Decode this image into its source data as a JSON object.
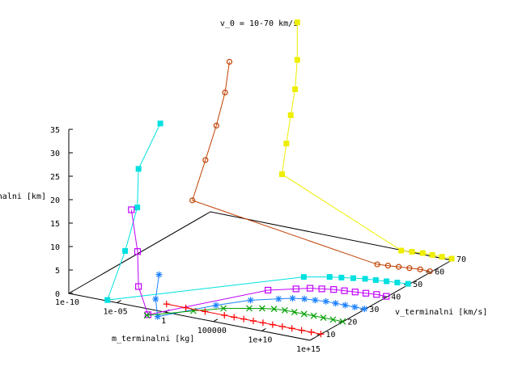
{
  "chart_data": {
    "type": "line",
    "title": "v_0 = 10-70 km/s",
    "xlabel": "m_terminalni [kg]",
    "ylabel": "v_terminalni [km/s]",
    "zlabel": "h_terminalni [km]",
    "x_scale": "log",
    "xlim": [
      1e-10,
      1000000000000000.0
    ],
    "ylim": [
      5,
      70
    ],
    "zlim": [
      0,
      35
    ],
    "x_ticks": [
      "1e-10",
      "1e-05",
      "1",
      "100000",
      "1e+10",
      "1e+15"
    ],
    "y_ticks": [
      "10",
      "20",
      "30",
      "40",
      "50",
      "60",
      "70"
    ],
    "z_ticks": [
      "0",
      "5",
      "10",
      "15",
      "20",
      "25",
      "30",
      "35"
    ],
    "grid": false,
    "legend": "none",
    "series": [
      {
        "v0": 10,
        "color": "#ff0000",
        "marker": "plus",
        "points": [
          [
            0.1,
            10,
            0
          ],
          [
            10.0,
            10,
            0
          ],
          [
            1000.0,
            10,
            0
          ],
          [
            100000.0,
            10,
            0
          ],
          [
            1000000.0,
            10,
            0
          ],
          [
            10000000.0,
            10,
            0
          ],
          [
            100000000.0,
            10,
            0
          ],
          [
            1000000000.0,
            10,
            0
          ],
          [
            10000000000.0,
            10,
            0
          ],
          [
            100000000000.0,
            10,
            0
          ],
          [
            1000000000000.0,
            10,
            0
          ],
          [
            10000000000000.0,
            10,
            0
          ],
          [
            100000000000000.0,
            10,
            0
          ],
          [
            1000000000000000.0,
            10,
            0
          ]
        ]
      },
      {
        "v0": 20,
        "color": "#00a000",
        "marker": "cross",
        "points": [
          [
            0.1,
            1,
            0
          ],
          [
            100.0,
            9,
            0
          ],
          [
            10000.0,
            14,
            0
          ],
          [
            1000000.0,
            17,
            0
          ],
          [
            10000000.0,
            18.5,
            0
          ],
          [
            100000000.0,
            19.5,
            0
          ],
          [
            1000000000.0,
            20,
            0
          ],
          [
            10000000000.0,
            20,
            0
          ],
          [
            100000000000.0,
            20,
            0
          ],
          [
            1000000000000.0,
            20,
            0
          ],
          [
            10000000000000.0,
            20,
            0
          ],
          [
            100000000000000.0,
            20,
            0
          ],
          [
            1000000000000000.0,
            20,
            0
          ]
        ]
      },
      {
        "v0": 30,
        "color": "#1e82ff",
        "marker": "star",
        "points": [
          [
            0.01,
            11,
            5.6
          ],
          [
            0.1,
            5,
            2.4
          ],
          [
            1.0,
            1.5,
            0
          ],
          [
            1000.0,
            15,
            0
          ],
          [
            100000.0,
            22,
            0
          ],
          [
            10000000.0,
            26,
            0
          ],
          [
            100000000.0,
            28,
            0
          ],
          [
            1000000000.0,
            29,
            0
          ],
          [
            10000000000.0,
            29.5,
            0
          ],
          [
            100000000000.0,
            30,
            0
          ],
          [
            1000000000000.0,
            30,
            0
          ],
          [
            10000000000000.0,
            30,
            0
          ],
          [
            100000000000000.0,
            30,
            0
          ],
          [
            1000000000000000.0,
            30,
            0
          ]
        ]
      },
      {
        "v0": 40,
        "color": "#c000ff",
        "marker": "square-open",
        "points": [
          [
            1e-06,
            16,
            16.5
          ],
          [
            0.0001,
            10,
            10
          ],
          [
            0.001,
            6,
            4
          ],
          [
            0.1,
            1.5,
            0
          ],
          [
            100000.0,
            30,
            0
          ],
          [
            10000000.0,
            34,
            0
          ],
          [
            100000000.0,
            36,
            0
          ],
          [
            1000000000.0,
            37,
            0
          ],
          [
            10000000000.0,
            38,
            0
          ],
          [
            100000000000.0,
            38.5,
            0
          ],
          [
            1000000000000.0,
            39,
            0
          ],
          [
            10000000000000.0,
            39.5,
            0
          ],
          [
            100000000000000.0,
            40,
            0
          ],
          [
            1000000000000000.0,
            40,
            0
          ]
        ]
      },
      {
        "v0": 50,
        "color": "#00e0e0",
        "marker": "square-filled",
        "points": [
          [
            1e-10,
            47,
            25
          ],
          [
            1e-10,
            37,
            18
          ],
          [
            1e-09,
            32,
            11.5
          ],
          [
            1e-08,
            22,
            5.3
          ],
          [
            1e-06,
            5,
            0.2
          ],
          [
            1000000.0,
            42,
            0
          ],
          [
            100000000.0,
            45,
            0
          ],
          [
            1000000000.0,
            46,
            0
          ],
          [
            10000000000.0,
            47,
            0
          ],
          [
            100000000000.0,
            48,
            0
          ],
          [
            1000000000000.0,
            48.5,
            0
          ],
          [
            10000000000000.0,
            49,
            0
          ],
          [
            100000000000000.0,
            49.5,
            0
          ],
          [
            1000000000000000.0,
            50,
            0
          ]
        ]
      },
      {
        "v0": 60,
        "color": "#c04000",
        "marker": "circle-open",
        "points": [
          [
            1e-06,
            61,
            36
          ],
          [
            1e-06,
            59,
            30
          ],
          [
            1e-06,
            55,
            24
          ],
          [
            1e-06,
            50,
            18
          ],
          [
            1e-06,
            44,
            11
          ],
          [
            10000000000.0,
            58,
            0
          ],
          [
            100000000000.0,
            58.5,
            0
          ],
          [
            1000000000000.0,
            59,
            0
          ],
          [
            10000000000000.0,
            59.5,
            0
          ],
          [
            100000000000000.0,
            60,
            0
          ],
          [
            1000000000000000.0,
            60,
            0
          ]
        ]
      },
      {
        "v0": 70,
        "color": "#eeee00",
        "marker": "square-filled",
        "points": [
          [
            0.1,
            70,
            44
          ],
          [
            0.1,
            70,
            36
          ],
          [
            0.1,
            69,
            30
          ],
          [
            0.1,
            67,
            25
          ],
          [
            0.1,
            65,
            19.5
          ],
          [
            0.1,
            63,
            13.5
          ],
          [
            10000000000.0,
            69,
            0
          ],
          [
            100000000000.0,
            69.5,
            0
          ],
          [
            1000000000000.0,
            70,
            0
          ],
          [
            10000000000000.0,
            70,
            0
          ],
          [
            100000000000000.0,
            70,
            0
          ],
          [
            1000000000000000.0,
            70,
            0
          ]
        ]
      }
    ]
  }
}
